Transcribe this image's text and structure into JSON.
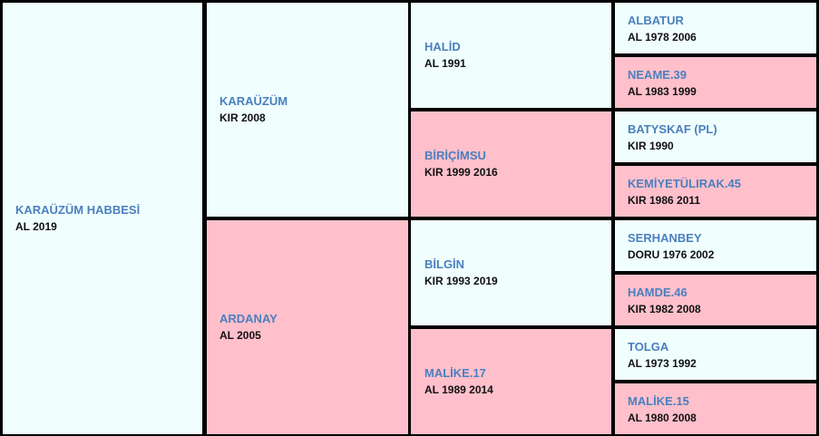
{
  "subject": {
    "name": "KARAÜZÜM HABBESİ",
    "info": "AL 2019"
  },
  "sire": {
    "name": "KARAÜZÜM",
    "info": "KIR 2008"
  },
  "dam": {
    "name": "ARDANAY",
    "info": "AL 2005"
  },
  "sire_sire": {
    "name": "HALİD",
    "info": "AL 1991"
  },
  "sire_dam": {
    "name": "BİRİÇİMSU",
    "info": "KIR 1999 2016"
  },
  "dam_sire": {
    "name": "BİLGİN",
    "info": "KIR 1993 2019"
  },
  "dam_dam": {
    "name": "MALİKE.17",
    "info": "AL 1989 2014"
  },
  "ss_sire": {
    "name": "ALBATUR",
    "info": "AL 1978 2006"
  },
  "ss_dam": {
    "name": "NEAME.39",
    "info": "AL 1983 1999"
  },
  "sd_sire": {
    "name": "BATYSKAF (PL)",
    "info": "KIR 1990"
  },
  "sd_dam": {
    "name": "KEMİYETÜLIRAK.45",
    "info": "KIR 1986 2011"
  },
  "ds_sire": {
    "name": "SERHANBEY",
    "info": "DORU 1976 2002"
  },
  "ds_dam": {
    "name": "HAMDE.46",
    "info": "KIR 1982 2008"
  },
  "dd_sire": {
    "name": "TOLGA",
    "info": "AL 1973 1992"
  },
  "dd_dam": {
    "name": "MALİKE.15",
    "info": "AL 1980 2008"
  },
  "colors": {
    "male_bg": "#f0fffe",
    "female_bg": "#ffc0cb",
    "name": "#4a7fbf",
    "border": "#000000"
  }
}
